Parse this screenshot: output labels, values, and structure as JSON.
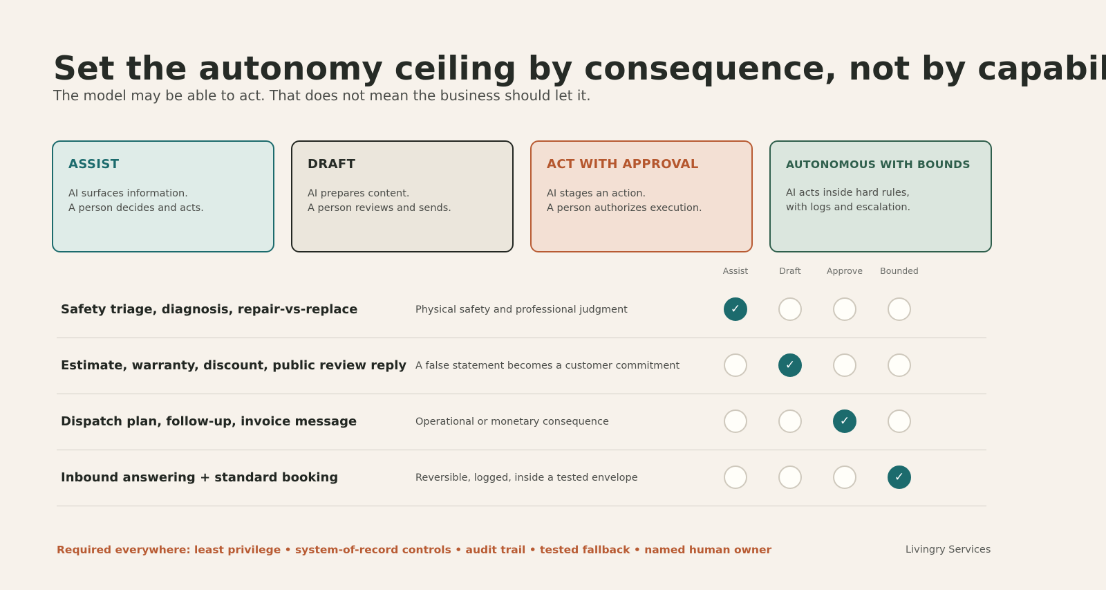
{
  "title": "Set the autonomy ceiling by consequence, not by capability",
  "subtitle": "The model may be able to act. That does not mean the business should let it.",
  "cards": [
    {
      "title": "ASSIST",
      "lines": [
        "AI surfaces information.",
        "A person decides and acts."
      ]
    },
    {
      "title": "DRAFT",
      "lines": [
        "AI prepares content.",
        "A person reviews and sends."
      ]
    },
    {
      "title": "ACT WITH APPROVAL",
      "lines": [
        "AI stages an action.",
        "A person authorizes execution."
      ]
    },
    {
      "title": "AUTONOMOUS WITH BOUNDS",
      "lines": [
        "AI acts inside hard rules,",
        "with logs and escalation."
      ]
    }
  ],
  "columns": [
    "Assist",
    "Draft",
    "Approve",
    "Bounded"
  ],
  "rows": [
    {
      "label": "Safety triage, diagnosis, repair-vs-replace",
      "description": "Physical safety and professional judgment",
      "selected": "Assist"
    },
    {
      "label": "Estimate, warranty, discount, public review reply",
      "description": "A false statement becomes a customer commitment",
      "selected": "Draft"
    },
    {
      "label": "Dispatch plan, follow-up, invoice message",
      "description": "Operational or monetary consequence",
      "selected": "Approve"
    },
    {
      "label": "Inbound answering + standard booking",
      "description": "Reversible, logged, inside a tested envelope",
      "selected": "Bounded"
    }
  ],
  "check_glyph": "✓",
  "footer": "Required everywhere: least privilege • system-of-record controls • audit trail • tested fallback • named human owner",
  "brand": "Livingry Services",
  "colors": {
    "background": "#f7f2eb",
    "teal": "#1c6b6d",
    "dark": "#232722",
    "rust": "#b85b33",
    "green": "#2f5f4c"
  }
}
